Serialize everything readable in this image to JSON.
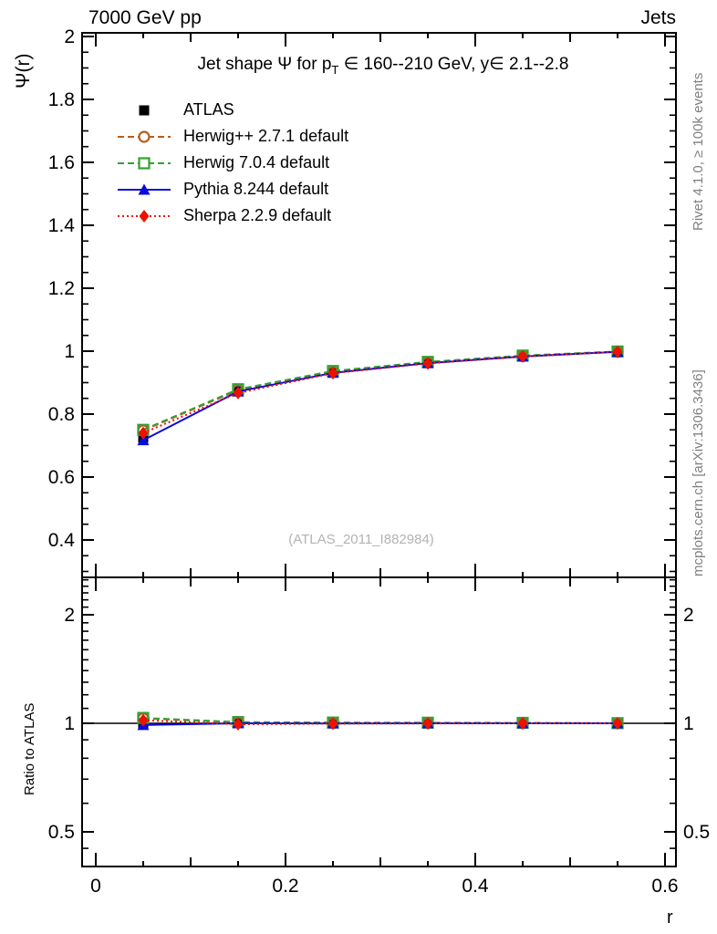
{
  "header": {
    "left": "7000 GeV pp",
    "right": "Jets"
  },
  "title": {
    "part1": "Jet shape Ψ for p",
    "sub": "T",
    "part2": " ∈ 160--210 GeV, y∈ 2.1--2.8"
  },
  "watermark": "(ATLAS_2011_I882984)",
  "side_notes": {
    "rivet": "Rivet 4.1.0, ≥ 100k events",
    "mcplots": "mcplots.cern.ch [arXiv:1306.3436]"
  },
  "axis_titles": {
    "x": "r",
    "main_y": "Ψ(r)",
    "ratio_y": "Ratio to ATLAS"
  },
  "chart_data": {
    "type": "line",
    "title": "Jet shape Psi for pT in 160--210 GeV, y in 2.1--2.8",
    "xlabel": "r",
    "ylabel": "Psi(r)",
    "ratio_ylabel": "Ratio to ATLAS",
    "x": [
      0.05,
      0.15,
      0.25,
      0.35,
      0.45,
      0.55
    ],
    "xlim": [
      -0.0144,
      0.6115
    ],
    "main_ylim": [
      0.281,
      2.012
    ],
    "ratio_ylim": [
      0.401,
      2.54
    ],
    "ratio_scale": "log",
    "x_ticks_major": [
      0,
      0.2,
      0.4,
      0.6
    ],
    "x_tick_labels": [
      "0",
      "0.2",
      "0.4",
      "0.6"
    ],
    "x_ticks_mid": [
      0.1,
      0.3,
      0.5
    ],
    "x_ticks_minor": [
      0.05,
      0.15,
      0.25,
      0.35,
      0.45,
      0.55
    ],
    "main_y_ticks_major": [
      0.4,
      0.6,
      0.8,
      1,
      1.2,
      1.4,
      1.6,
      1.8,
      2
    ],
    "main_y_minor": {
      "start": 0.3,
      "end": 2.0,
      "step": 0.05
    },
    "ratio_y_ticks_major": [
      0.5,
      1,
      2
    ],
    "ratio_y_ticks_minor": [
      0.45,
      0.6,
      0.7,
      0.8,
      0.9,
      1.1,
      1.2,
      1.3,
      1.4,
      1.5,
      1.6,
      1.7,
      1.8,
      1.9,
      2.1,
      2.2,
      2.3,
      2.4,
      2.5
    ],
    "ratio_reference": 1,
    "legend_position": "top-left-inside",
    "series": [
      {
        "name": "ATLAS",
        "color": "#000000",
        "line": "none",
        "marker": "square-filled",
        "values": [
          0.725,
          0.872,
          0.932,
          0.962,
          0.983,
          0.998
        ],
        "ratio": [
          1,
          1,
          1,
          1,
          1,
          1
        ]
      },
      {
        "name": "Herwig++ 2.7.1 default",
        "color": "#b35f1e",
        "line": "dashed",
        "marker": "circle-open",
        "values": [
          0.748,
          0.876,
          0.934,
          0.964,
          0.984,
          0.998
        ],
        "ratio": [
          1.032,
          1.005,
          1.002,
          1.002,
          1.001,
          1.0
        ]
      },
      {
        "name": "Herwig 7.0.4 default",
        "color": "#33a033",
        "line": "dashed",
        "marker": "square-open",
        "values": [
          0.75,
          0.879,
          0.937,
          0.966,
          0.986,
          0.999
        ],
        "ratio": [
          1.035,
          1.008,
          1.005,
          1.004,
          1.003,
          1.001
        ]
      },
      {
        "name": "Pythia 8.244 default",
        "color": "#0b0bdb",
        "line": "solid",
        "marker": "triangle-filled",
        "values": [
          0.717,
          0.872,
          0.931,
          0.962,
          0.983,
          0.998
        ],
        "ratio": [
          0.989,
          1.0,
          0.999,
          1.0,
          1.0,
          1.0
        ]
      },
      {
        "name": "Sherpa 2.2.9 default",
        "color": "#ee1100",
        "line": "dotted",
        "marker": "diamond-filled",
        "values": [
          0.74,
          0.867,
          0.93,
          0.961,
          0.983,
          0.998
        ],
        "ratio": [
          1.02,
          0.994,
          0.998,
          0.999,
          1.0,
          1.0
        ]
      }
    ]
  }
}
